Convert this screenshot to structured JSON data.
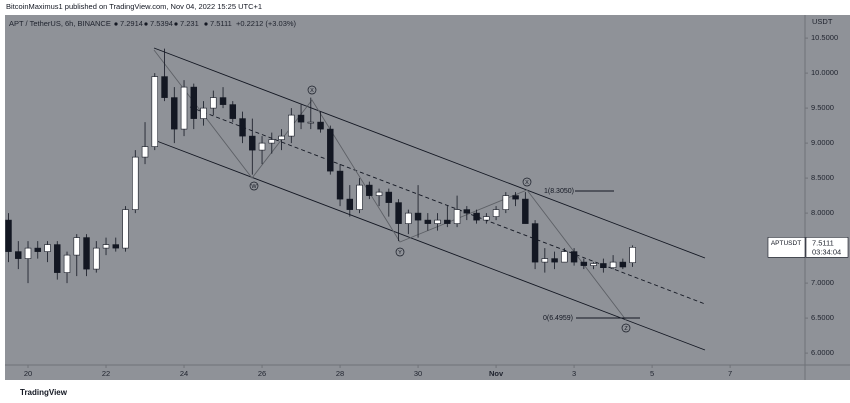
{
  "chart_data": {
    "type": "candlestick",
    "publisher": "BitcoinMaximus1 published on TradingView.com, Nov 04, 2022 15:25 UTC+1",
    "title": "APT / TetherUS, 6h, BINANCE",
    "header_values": [
      7.2914,
      7.5394,
      7.231,
      7.5111
    ],
    "change": "+0.2212 (+3.03%)",
    "ylabel": "USDT",
    "symbol": "APTUSDT",
    "countdown": "03:34:04",
    "footer": "TradingView",
    "wave_labels": [
      "W",
      "X",
      "Y",
      "X",
      "Z"
    ],
    "fib_labels": [
      "1(8.3050)",
      "0(6.4959)"
    ],
    "up_color": "#ffffff",
    "down_color": "#131722",
    "x": [
      19.5,
      19.75,
      20,
      20.25,
      20.5,
      20.75,
      21,
      21.25,
      21.5,
      21.75,
      22,
      22.25,
      22.5,
      22.75,
      23,
      23.25,
      23.5,
      23.75,
      24,
      24.25,
      24.5,
      24.75,
      25,
      25.25,
      25.5,
      25.75,
      26,
      26.25,
      26.5,
      26.75,
      27,
      27.25,
      27.5,
      27.75,
      28,
      28.25,
      28.5,
      28.75,
      29,
      29.25,
      29.5,
      29.75,
      30,
      30.25,
      30.5,
      30.75,
      31,
      31.25,
      31.5,
      31.75,
      32,
      32.25,
      32.5,
      32.75,
      33,
      33.25,
      33.5,
      33.75,
      34,
      34.25,
      34.5,
      34.75,
      35,
      35.25,
      35.5
    ],
    "open": [
      7.9,
      7.45,
      7.35,
      7.5,
      7.45,
      7.55,
      7.15,
      7.4,
      7.65,
      7.2,
      7.5,
      7.55,
      7.5,
      8.05,
      8.8,
      8.95,
      9.95,
      9.65,
      9.2,
      9.8,
      9.35,
      9.5,
      9.65,
      9.55,
      9.35,
      9.1,
      8.9,
      9.0,
      9.05,
      9.1,
      9.4,
      9.3,
      9.3,
      9.2,
      8.6,
      8.2,
      8.05,
      8.4,
      8.25,
      8.3,
      8.15,
      7.85,
      8.0,
      7.9,
      7.85,
      7.9,
      7.85,
      8.05,
      8.0,
      7.9,
      7.95,
      8.05,
      8.25,
      8.2,
      7.85,
      7.3,
      7.35,
      7.3,
      7.45,
      7.3,
      7.25,
      7.28,
      7.22,
      7.3,
      7.2914
    ],
    "high": [
      8.0,
      7.6,
      7.6,
      7.6,
      7.6,
      7.6,
      7.45,
      7.7,
      7.7,
      7.6,
      7.65,
      7.65,
      8.1,
      8.9,
      9.3,
      10.0,
      10.35,
      9.8,
      9.9,
      9.85,
      9.6,
      9.75,
      9.8,
      9.6,
      9.45,
      9.35,
      9.1,
      9.15,
      9.2,
      9.5,
      9.55,
      9.65,
      9.45,
      9.25,
      8.7,
      8.4,
      8.5,
      8.45,
      8.35,
      8.35,
      8.2,
      8.05,
      8.4,
      8.0,
      8.0,
      8.1,
      8.25,
      8.1,
      8.05,
      8.0,
      8.1,
      8.3,
      8.3,
      8.3,
      7.9,
      7.5,
      7.45,
      7.5,
      7.5,
      7.35,
      7.3,
      7.35,
      7.4,
      7.35,
      7.5394
    ],
    "low": [
      7.3,
      7.2,
      7.0,
      7.35,
      7.3,
      7.05,
      7.0,
      7.1,
      7.1,
      7.15,
      7.4,
      7.45,
      7.45,
      8.0,
      8.7,
      8.9,
      9.6,
      9.0,
      9.1,
      9.2,
      9.25,
      9.4,
      9.5,
      9.3,
      9.0,
      8.55,
      8.7,
      8.85,
      8.9,
      9.0,
      9.2,
      9.2,
      9.15,
      8.55,
      8.1,
      7.95,
      8.0,
      8.2,
      8.1,
      7.95,
      7.6,
      7.7,
      7.65,
      7.75,
      7.75,
      7.8,
      7.8,
      7.9,
      7.85,
      7.85,
      7.9,
      8.0,
      8.1,
      7.85,
      7.2,
      7.15,
      7.2,
      7.3,
      7.25,
      7.2,
      7.2,
      7.15,
      7.2,
      7.2,
      7.231
    ],
    "close": [
      7.45,
      7.35,
      7.5,
      7.45,
      7.55,
      7.15,
      7.4,
      7.65,
      7.2,
      7.5,
      7.55,
      7.5,
      8.05,
      8.8,
      8.95,
      9.95,
      9.65,
      9.2,
      9.8,
      9.35,
      9.5,
      9.65,
      9.55,
      9.35,
      9.1,
      8.9,
      9.0,
      9.05,
      9.1,
      9.4,
      9.3,
      9.3,
      9.2,
      8.6,
      8.2,
      8.05,
      8.4,
      8.25,
      8.3,
      8.15,
      7.85,
      8.0,
      7.9,
      7.85,
      7.9,
      7.85,
      8.05,
      8.0,
      7.9,
      7.95,
      8.05,
      8.25,
      8.2,
      7.85,
      7.3,
      7.35,
      7.3,
      7.45,
      7.3,
      7.25,
      7.28,
      7.22,
      7.3,
      7.23,
      7.5111
    ],
    "xlim": [
      19.41,
      39.92
    ],
    "xticks": [
      20,
      22,
      24,
      26,
      28,
      30,
      {
        "value": 32,
        "label": "Nov"
      },
      {
        "value": 34,
        "label": "3"
      },
      {
        "value": 36,
        "label": "5"
      },
      {
        "value": 38,
        "label": "7"
      }
    ],
    "ylim": [
      5.83,
      10.83
    ],
    "yticks": [
      {
        "value": 10.5,
        "label": "10.5000"
      },
      {
        "value": 10,
        "label": "10.0000"
      },
      {
        "value": 9.5,
        "label": "9.5000"
      },
      {
        "value": 9,
        "label": "9.0000"
      },
      {
        "value": 8.5,
        "label": "8.5000"
      },
      {
        "value": 8,
        "label": "8.0000"
      },
      {
        "value": 7,
        "label": "7.0000"
      },
      {
        "value": 6.5,
        "label": "6.5000"
      },
      {
        "value": 6,
        "label": "6.0000"
      }
    ]
  }
}
